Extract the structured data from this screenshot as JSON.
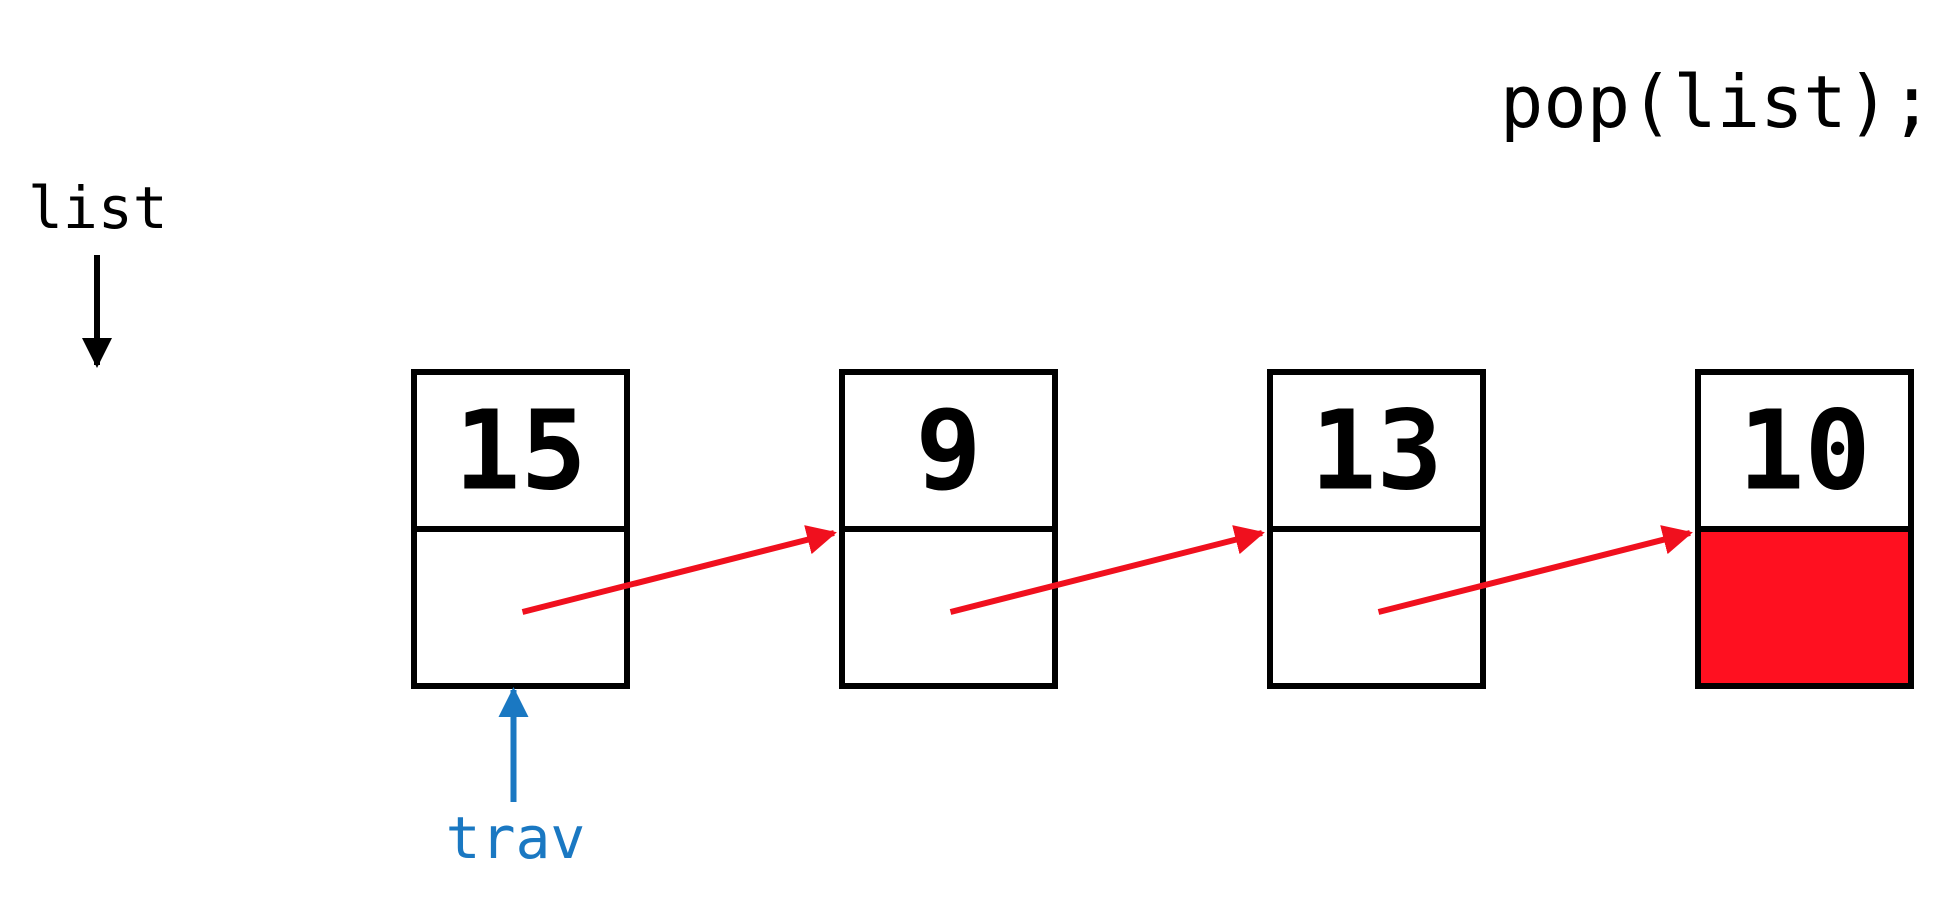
{
  "code": "pop(list);",
  "head_label": "list",
  "trav_label": "trav",
  "colors": {
    "pointer_arrow": "#f0101e",
    "trav_arrow": "#1a78c2",
    "removed_node_fill": "#ff1020",
    "head_arrow": "#000000",
    "node_border": "#000000"
  },
  "nodes": [
    {
      "value": "15",
      "next": "arrow",
      "removed": false
    },
    {
      "value": "9",
      "next": "arrow",
      "removed": false
    },
    {
      "value": "13",
      "next": "arrow",
      "removed": false
    },
    {
      "value": "10",
      "next": "filled",
      "removed": true
    }
  ],
  "trav_points_to_node": 0
}
